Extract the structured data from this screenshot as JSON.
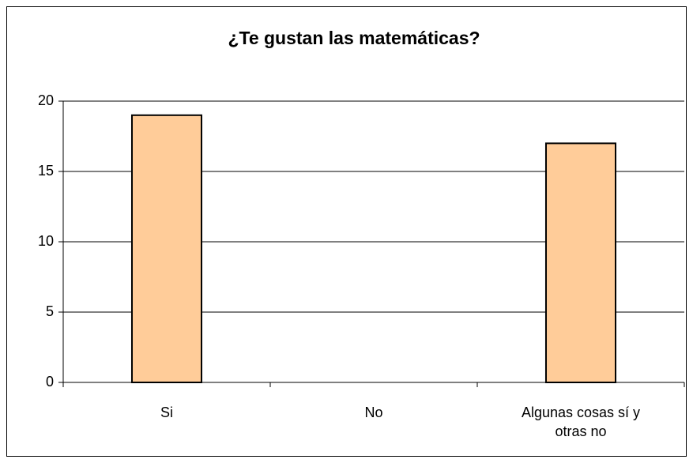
{
  "chart_data": {
    "type": "bar",
    "title": "¿Te gustan las matemáticas?",
    "categories": [
      "Si",
      "No",
      "Algunas cosas sí y otras no"
    ],
    "values": [
      19,
      0,
      17
    ],
    "color": "#ffcc99",
    "ylim": [
      0,
      20
    ],
    "yticks": [
      0,
      5,
      10,
      15,
      20
    ],
    "grid": true
  }
}
